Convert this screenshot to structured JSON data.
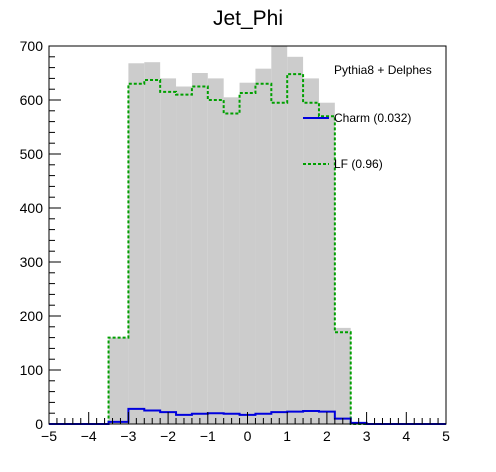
{
  "chart_data": {
    "type": "bar",
    "title": "Jet_Phi",
    "xlabel": "",
    "ylabel": "",
    "xlim": [
      -5,
      5
    ],
    "ylim": [
      0,
      700
    ],
    "grid": false,
    "legend_placement": "top-right",
    "bin_edges": [
      -3.5,
      -3.0,
      -2.6,
      -2.2,
      -1.8,
      -1.4,
      -1.0,
      -0.6,
      -0.2,
      0.2,
      0.6,
      1.0,
      1.4,
      1.8,
      2.2,
      2.6,
      3.0,
      3.5
    ],
    "series": [
      {
        "name": "",
        "style": "filled",
        "color": "#cccccc",
        "values": [
          160,
          668,
          670,
          640,
          625,
          650,
          640,
          605,
          632,
          658,
          700,
          680,
          640,
          595,
          178,
          0,
          0
        ]
      },
      {
        "name": "Charm (0.032)",
        "style": "line",
        "color": "#0000dd",
        "values": [
          4,
          28,
          25,
          22,
          17,
          19,
          20,
          19,
          17,
          19,
          22,
          23,
          24,
          23,
          10,
          2,
          0
        ]
      },
      {
        "name": "LF (0.96)",
        "style": "dashed",
        "color": "#00a000",
        "values": [
          160,
          630,
          637,
          615,
          610,
          625,
          600,
          575,
          613,
          630,
          595,
          648,
          595,
          570,
          170,
          0,
          0
        ]
      }
    ],
    "annotation": "Pythia8 + Delphes",
    "x_ticks": [
      "−5",
      "−4",
      "−3",
      "−2",
      "−1",
      "0",
      "1",
      "2",
      "3",
      "4",
      "5"
    ],
    "x_tick_values": [
      -5,
      -4,
      -3,
      -2,
      -1,
      0,
      1,
      2,
      3,
      4,
      5
    ],
    "y_ticks": [
      "0",
      "100",
      "200",
      "300",
      "400",
      "500",
      "600",
      "700"
    ],
    "y_tick_values": [
      0,
      100,
      200,
      300,
      400,
      500,
      600,
      700
    ]
  }
}
